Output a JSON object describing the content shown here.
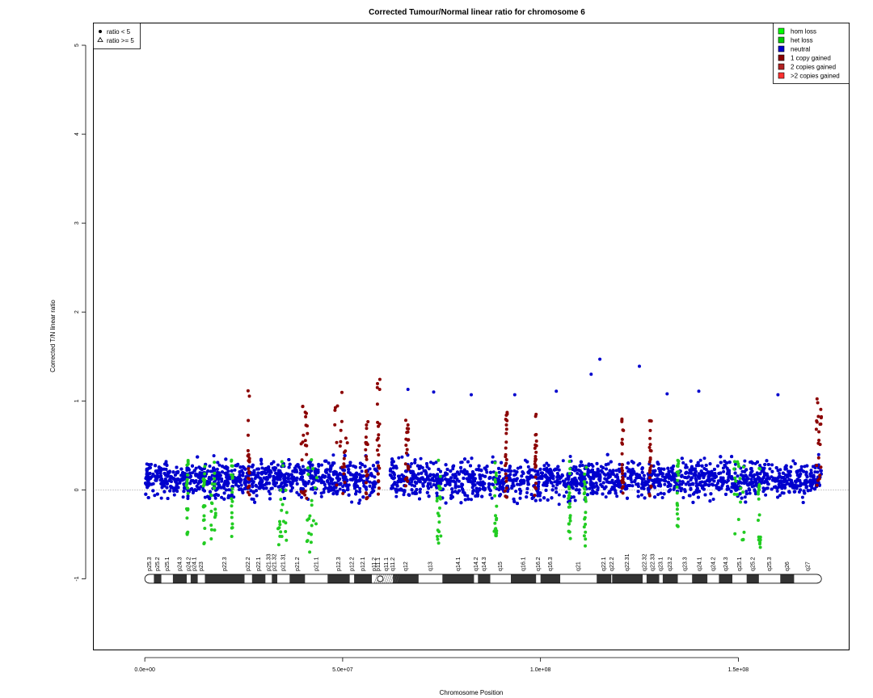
{
  "chart_data": {
    "type": "scatter",
    "title": "Corrected Tumour/Normal linear ratio for chromosome  6",
    "xlabel": "Chromosome Position",
    "ylabel": "Corrected T/N linear ratio",
    "xlim": [
      -13000000,
      178000000
    ],
    "ylim": [
      -1.8,
      5.25
    ],
    "x_ticks": [
      0,
      50000000,
      100000000,
      150000000
    ],
    "x_tick_labels": [
      "0.0e+00",
      "5.0e+07",
      "1.0e+08",
      "1.5e+08"
    ],
    "y_ticks": [
      -1,
      0,
      1,
      2,
      3,
      4,
      5
    ],
    "y_tick_labels": [
      "-1",
      "0",
      "1",
      "2",
      "3",
      "4",
      "5"
    ],
    "reference_line_y": 0,
    "chromosome_length": 171000000,
    "centromere": 59500000,
    "shape_legend": [
      {
        "label": "ratio < 5",
        "symbol": "filled-circle"
      },
      {
        "label": "ratio >= 5",
        "symbol": "open-triangle"
      }
    ],
    "legend_position": "top-right",
    "legend": [
      {
        "label": "hom loss",
        "color": "#00ff00"
      },
      {
        "label": "het loss",
        "color": "#00cd00"
      },
      {
        "label": "neutral",
        "color": "#0000cd"
      },
      {
        "label": "1 copy gained",
        "color": "#8b0000"
      },
      {
        "label": "2 copies gained",
        "color": "#b22222"
      },
      {
        "label": ">2 copies gained",
        "color": "#ff3030"
      }
    ],
    "series_colors": {
      "neutral": "#0000cd",
      "het_loss": "#22cc22",
      "gain": "#8b0000"
    },
    "ideogram_bands": [
      {
        "name": "p25.3",
        "start": 0,
        "end": 2300000,
        "stain": "gneg"
      },
      {
        "name": "p25.2",
        "start": 2300000,
        "end": 4200000,
        "stain": "gpos"
      },
      {
        "name": "p25.1",
        "start": 4200000,
        "end": 7100000,
        "stain": "gneg"
      },
      {
        "name": "p24.3",
        "start": 7100000,
        "end": 10600000,
        "stain": "gpos"
      },
      {
        "name": "p24.2",
        "start": 10600000,
        "end": 11600000,
        "stain": "gneg"
      },
      {
        "name": "p24.1",
        "start": 11600000,
        "end": 13400000,
        "stain": "gpos"
      },
      {
        "name": "p23",
        "start": 13400000,
        "end": 15200000,
        "stain": "gneg"
      },
      {
        "name": "p22.3",
        "start": 15200000,
        "end": 25200000,
        "stain": "gpos"
      },
      {
        "name": "p22.2",
        "start": 25200000,
        "end": 27100000,
        "stain": "gneg"
      },
      {
        "name": "p22.1",
        "start": 27100000,
        "end": 30500000,
        "stain": "gpos"
      },
      {
        "name": "p21.33",
        "start": 30500000,
        "end": 32100000,
        "stain": "gneg"
      },
      {
        "name": "p21.32",
        "start": 32100000,
        "end": 33500000,
        "stain": "gpos"
      },
      {
        "name": "p21.31",
        "start": 33500000,
        "end": 36600000,
        "stain": "gneg"
      },
      {
        "name": "p21.2",
        "start": 36600000,
        "end": 40500000,
        "stain": "gpos"
      },
      {
        "name": "p21.1",
        "start": 40500000,
        "end": 46200000,
        "stain": "gneg"
      },
      {
        "name": "p12.3",
        "start": 46200000,
        "end": 51800000,
        "stain": "gpos"
      },
      {
        "name": "p12.2",
        "start": 51800000,
        "end": 52900000,
        "stain": "gneg"
      },
      {
        "name": "p12.1",
        "start": 52900000,
        "end": 57400000,
        "stain": "gpos"
      },
      {
        "name": "p11.2",
        "start": 57400000,
        "end": 58500000,
        "stain": "gneg"
      },
      {
        "name": "p11.1",
        "start": 58500000,
        "end": 59500000,
        "stain": "acen"
      },
      {
        "name": "q11.1",
        "start": 59500000,
        "end": 62600000,
        "stain": "acen"
      },
      {
        "name": "q11.2",
        "start": 62600000,
        "end": 62700000,
        "stain": "gneg"
      },
      {
        "name": "q12",
        "start": 62700000,
        "end": 69200000,
        "stain": "gpos"
      },
      {
        "name": "q13",
        "start": 69200000,
        "end": 75200000,
        "stain": "gneg"
      },
      {
        "name": "q14.1",
        "start": 75200000,
        "end": 83200000,
        "stain": "gpos"
      },
      {
        "name": "q14.2",
        "start": 83200000,
        "end": 84200000,
        "stain": "gneg"
      },
      {
        "name": "q14.3",
        "start": 84200000,
        "end": 87300000,
        "stain": "gpos"
      },
      {
        "name": "q15",
        "start": 87300000,
        "end": 92500000,
        "stain": "gneg"
      },
      {
        "name": "q16.1",
        "start": 92500000,
        "end": 98900000,
        "stain": "gpos"
      },
      {
        "name": "q16.2",
        "start": 98900000,
        "end": 100000000,
        "stain": "gneg"
      },
      {
        "name": "q16.3",
        "start": 100000000,
        "end": 105000000,
        "stain": "gpos"
      },
      {
        "name": "q21",
        "start": 105000000,
        "end": 114200000,
        "stain": "gneg"
      },
      {
        "name": "q22.1",
        "start": 114200000,
        "end": 117900000,
        "stain": "gpos"
      },
      {
        "name": "q22.2",
        "start": 117900000,
        "end": 118100000,
        "stain": "gneg"
      },
      {
        "name": "q22.31",
        "start": 118100000,
        "end": 125800000,
        "stain": "gpos"
      },
      {
        "name": "q22.32",
        "start": 125800000,
        "end": 126800000,
        "stain": "gneg"
      },
      {
        "name": "q22.33",
        "start": 126800000,
        "end": 130000000,
        "stain": "gpos"
      },
      {
        "name": "q23.1",
        "start": 130000000,
        "end": 130900000,
        "stain": "gneg"
      },
      {
        "name": "q23.2",
        "start": 130900000,
        "end": 134700000,
        "stain": "gpos"
      },
      {
        "name": "q23.3",
        "start": 134700000,
        "end": 138300000,
        "stain": "gneg"
      },
      {
        "name": "q24.1",
        "start": 138300000,
        "end": 142200000,
        "stain": "gpos"
      },
      {
        "name": "q24.2",
        "start": 142200000,
        "end": 145100000,
        "stain": "gneg"
      },
      {
        "name": "q24.3",
        "start": 145100000,
        "end": 148500000,
        "stain": "gpos"
      },
      {
        "name": "q25.1",
        "start": 148500000,
        "end": 152100000,
        "stain": "gneg"
      },
      {
        "name": "q25.2",
        "start": 152100000,
        "end": 155200000,
        "stain": "gpos"
      },
      {
        "name": "q25.3",
        "start": 155200000,
        "end": 160600000,
        "stain": "gneg"
      },
      {
        "name": "q26",
        "start": 160600000,
        "end": 164100000,
        "stain": "gpos"
      },
      {
        "name": "q27",
        "start": 164100000,
        "end": 171000000,
        "stain": "gneg"
      }
    ],
    "loss_regions": [
      {
        "start": 10500000,
        "end": 11000000,
        "min": -0.62
      },
      {
        "start": 14800000,
        "end": 15200000,
        "min": -0.62
      },
      {
        "start": 16600000,
        "end": 17900000,
        "min": -0.58
      },
      {
        "start": 21800000,
        "end": 22200000,
        "min": -0.55
      },
      {
        "start": 33600000,
        "end": 35900000,
        "min": -0.62
      },
      {
        "start": 40900000,
        "end": 43500000,
        "min": -0.7
      },
      {
        "start": 73800000,
        "end": 74800000,
        "min": -0.68
      },
      {
        "start": 88300000,
        "end": 88900000,
        "min": -0.55
      },
      {
        "start": 107000000,
        "end": 107600000,
        "min": -0.58
      },
      {
        "start": 111000000,
        "end": 111600000,
        "min": -0.65
      },
      {
        "start": 134500000,
        "end": 134900000,
        "min": -0.52
      },
      {
        "start": 148600000,
        "end": 151700000,
        "min": -0.6
      },
      {
        "start": 155000000,
        "end": 155600000,
        "min": -0.65
      }
    ],
    "gain_regions": [
      {
        "start": 26000000,
        "end": 26500000,
        "max": 1.13
      },
      {
        "start": 39500000,
        "end": 41200000,
        "max": 0.95
      },
      {
        "start": 48000000,
        "end": 51300000,
        "max": 1.11
      },
      {
        "start": 55800000,
        "end": 56400000,
        "max": 0.82
      },
      {
        "start": 58700000,
        "end": 59400000,
        "max": 1.25
      },
      {
        "start": 65900000,
        "end": 66700000,
        "max": 0.88
      },
      {
        "start": 91000000,
        "end": 91600000,
        "max": 0.95
      },
      {
        "start": 98500000,
        "end": 99000000,
        "max": 0.85
      },
      {
        "start": 120500000,
        "end": 121000000,
        "max": 0.85
      },
      {
        "start": 127500000,
        "end": 128000000,
        "max": 0.8
      },
      {
        "start": 169700000,
        "end": 171000000,
        "max": 1.08
      }
    ],
    "outliers": [
      {
        "x": 115000000,
        "y": 1.47
      },
      {
        "x": 112800000,
        "y": 1.3
      },
      {
        "x": 125000000,
        "y": 1.39
      },
      {
        "x": 140000000,
        "y": 1.11
      },
      {
        "x": 104000000,
        "y": 1.11
      },
      {
        "x": 73000000,
        "y": 1.1
      },
      {
        "x": 66500000,
        "y": 1.13
      },
      {
        "x": 132000000,
        "y": 1.08
      },
      {
        "x": 160000000,
        "y": 1.07
      },
      {
        "x": 82500000,
        "y": 1.07
      },
      {
        "x": 93500000,
        "y": 1.07
      }
    ]
  }
}
